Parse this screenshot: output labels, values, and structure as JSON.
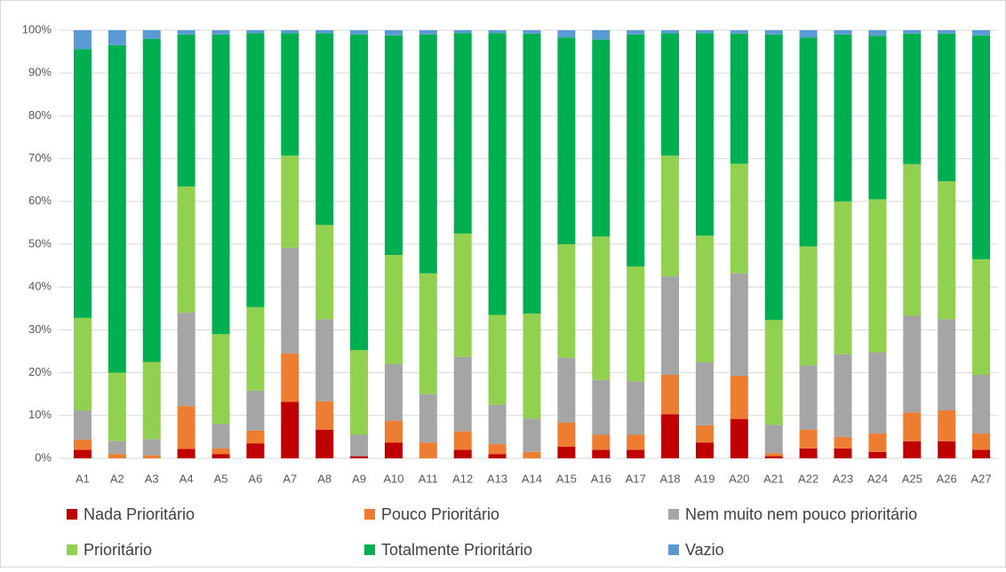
{
  "chart_data": {
    "type": "stacked_bar",
    "categories": [
      "A1",
      "A2",
      "A3",
      "A4",
      "A5",
      "A6",
      "A7",
      "A8",
      "A9",
      "A10",
      "A11",
      "A12",
      "A13",
      "A14",
      "A15",
      "A16",
      "A17",
      "A18",
      "A19",
      "A20",
      "A21",
      "A22",
      "A23",
      "A24",
      "A25",
      "A26",
      "A27"
    ],
    "series": [
      {
        "name": "Nada Prioritário",
        "color": "#c00000",
        "values": [
          2,
          0,
          0,
          2.2,
          1,
          3.5,
          13.2,
          6.7,
          0.5,
          3.7,
          0,
          2,
          1,
          0,
          2.7,
          2,
          2,
          10.3,
          3.7,
          9.2,
          0.5,
          2.3,
          2.3,
          1.5,
          4,
          4,
          2
        ]
      },
      {
        "name": "Pouco Prioritário",
        "color": "#ed7d31",
        "values": [
          2.4,
          1,
          0.7,
          10,
          1.3,
          3,
          11.3,
          6.6,
          0,
          5.1,
          3.7,
          4.3,
          2.3,
          1.5,
          5.6,
          3.5,
          3.5,
          9.2,
          4,
          10.1,
          0.7,
          4.4,
          2.7,
          4.3,
          6.7,
          7.2,
          3.8
        ]
      },
      {
        "name": "Nem muito nem pouco prioritário",
        "color": "#a5a5a5",
        "values": [
          6.8,
          3,
          3.8,
          21.8,
          5.7,
          9.3,
          24.7,
          19.2,
          5,
          13.2,
          11.3,
          17.4,
          9.2,
          7.8,
          15.2,
          12.8,
          12.5,
          23,
          14.8,
          23.9,
          6.6,
          15,
          19.3,
          18.9,
          22.6,
          21.3,
          13.7
        ]
      },
      {
        "name": "Prioritário",
        "color": "#92d050",
        "values": [
          21.6,
          16,
          18,
          29.5,
          21,
          19.5,
          21.5,
          22,
          19.8,
          25.5,
          28.2,
          28.8,
          21,
          24.5,
          26.5,
          33.5,
          26.8,
          28.2,
          29.5,
          25.6,
          24.5,
          27.8,
          35.7,
          35.8,
          35.4,
          32.2,
          27
        ]
      },
      {
        "name": "Totalmente Prioritário",
        "color": "#00b050",
        "values": [
          62.8,
          76.5,
          75.5,
          35.5,
          70,
          64,
          28.6,
          44.8,
          73.7,
          51.3,
          55.8,
          46.8,
          65.8,
          65.4,
          48.3,
          46,
          54.2,
          28.6,
          47.3,
          30.4,
          66.7,
          48.8,
          39,
          38.2,
          30.5,
          34.5,
          52.3
        ]
      },
      {
        "name": "Vazio",
        "color": "#5b9bd5",
        "values": [
          4.4,
          3.5,
          2,
          1,
          1,
          0.7,
          0.7,
          0.7,
          1,
          1.2,
          1,
          0.7,
          0.7,
          0.8,
          1.7,
          2.2,
          1,
          0.7,
          0.7,
          0.8,
          1,
          1.7,
          1,
          1.3,
          0.8,
          0.8,
          1.2
        ]
      }
    ],
    "ylim": [
      0,
      100
    ],
    "yticks": [
      {
        "value": 0,
        "label": "0%"
      },
      {
        "value": 10,
        "label": "10%"
      },
      {
        "value": 20,
        "label": "20%"
      },
      {
        "value": 30,
        "label": "30%"
      },
      {
        "value": 40,
        "label": "40%"
      },
      {
        "value": 50,
        "label": "50%"
      },
      {
        "value": 60,
        "label": "60%"
      },
      {
        "value": 70,
        "label": "70%"
      },
      {
        "value": 80,
        "label": "80%"
      },
      {
        "value": 90,
        "label": "90%"
      },
      {
        "value": 100,
        "label": "100%"
      }
    ],
    "grid": true,
    "legend": "bottom"
  }
}
